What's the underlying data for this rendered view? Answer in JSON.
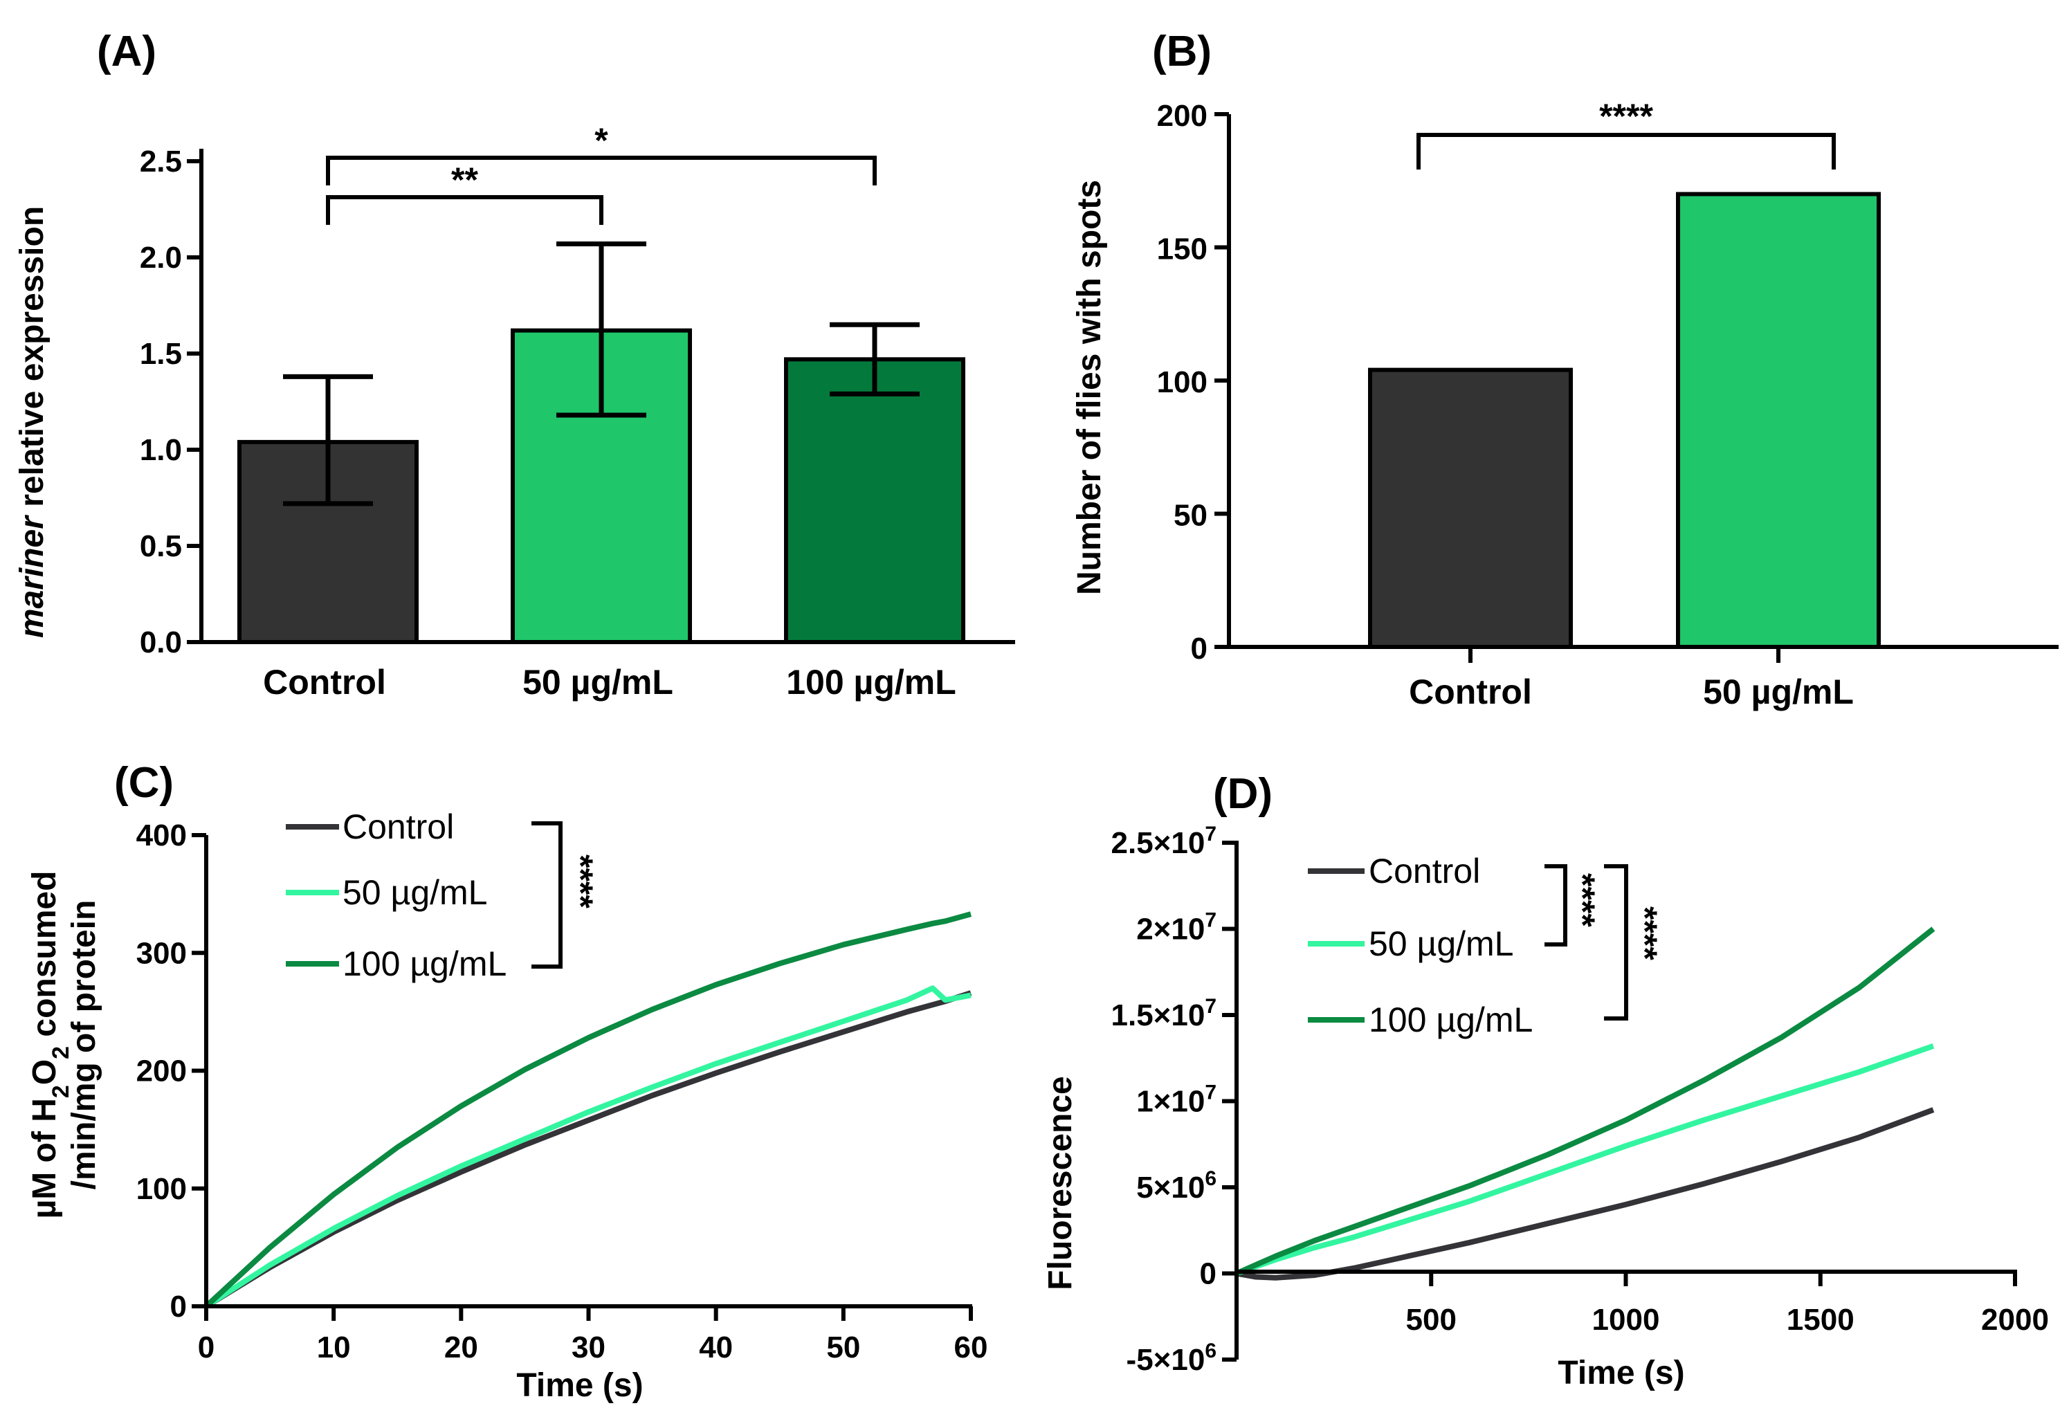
{
  "figure": {
    "colors": {
      "control": "#333333",
      "dose50": "#1fc66a",
      "dose100": "#037a3c",
      "line50": "#33f5a0",
      "line100": "#0b8a42",
      "lineControl": "#333338"
    }
  },
  "chart_data": [
    {
      "panel": "(A)",
      "type": "bar",
      "title": "",
      "categories": [
        "Control",
        "50 µg/mL",
        "100 µg/mL"
      ],
      "values": [
        1.04,
        1.62,
        1.47
      ],
      "error_low": [
        0.72,
        1.18,
        1.29
      ],
      "error_high": [
        1.38,
        2.07,
        1.65
      ],
      "ylabel_italic": "mariner",
      "ylabel_rest": " relative expression",
      "xlabel": "",
      "ylim": [
        0,
        2.5
      ],
      "yticks": [
        0,
        0.5,
        1.0,
        1.5,
        2.0,
        2.5
      ],
      "ytick_labels": [
        "0.0",
        "0.5",
        "1.0",
        "1.5",
        "2.0",
        "2.5"
      ],
      "significance": [
        {
          "from": 0,
          "to": 1,
          "label": "**"
        },
        {
          "from": 0,
          "to": 2,
          "label": "*"
        }
      ]
    },
    {
      "panel": "(B)",
      "type": "bar",
      "title": "",
      "categories": [
        "Control",
        "50 µg/mL"
      ],
      "values": [
        104,
        170
      ],
      "ylabel": "Number of flies with spots",
      "xlabel": "",
      "ylim": [
        0,
        200
      ],
      "yticks": [
        0,
        50,
        100,
        150,
        200
      ],
      "ytick_labels": [
        "0",
        "50",
        "100",
        "150",
        "200"
      ],
      "significance": [
        {
          "from": 0,
          "to": 1,
          "label": "****"
        }
      ]
    },
    {
      "panel": "(C)",
      "type": "line",
      "title": "",
      "xlabel": "Time (s)",
      "ylabel_line1_pre": "µM of H",
      "ylabel_line1_sub1": "2",
      "ylabel_line1_mid": "O",
      "ylabel_line1_sub2": "2",
      "ylabel_line1_post": " consumed",
      "ylabel_line2": "/min/mg of protein",
      "xlim": [
        0,
        60
      ],
      "ylim": [
        0,
        400
      ],
      "xticks": [
        0,
        10,
        20,
        30,
        40,
        50,
        60
      ],
      "xtick_labels": [
        "0",
        "10",
        "20",
        "30",
        "40",
        "50",
        "60"
      ],
      "yticks": [
        0,
        100,
        200,
        300,
        400
      ],
      "ytick_labels": [
        "0",
        "100",
        "200",
        "300",
        "400"
      ],
      "x": [
        0,
        5,
        10,
        15,
        20,
        25,
        30,
        35,
        40,
        45,
        50,
        55,
        57,
        58,
        60
      ],
      "series": [
        {
          "name": "Control",
          "color_key": "lineControl",
          "values": [
            0,
            33,
            63,
            90,
            114,
            137,
            158,
            179,
            198,
            216,
            233,
            250,
            256,
            259,
            266
          ]
        },
        {
          "name": "50 µg/mL",
          "color_key": "line50",
          "values": [
            0,
            35,
            66,
            94,
            119,
            142,
            165,
            186,
            206,
            224,
            242,
            260,
            270,
            260,
            264
          ]
        },
        {
          "name": "100 µg/mL",
          "color_key": "line100",
          "values": [
            0,
            50,
            95,
            135,
            170,
            201,
            228,
            252,
            273,
            291,
            307,
            320,
            325,
            327,
            333
          ]
        }
      ],
      "legend": [
        "Control",
        "50 µg/mL",
        "100 µg/mL"
      ],
      "significance_label": "****"
    },
    {
      "panel": "(D)",
      "type": "line",
      "title": "",
      "xlabel": "Time (s)",
      "ylabel": "Fluorescence",
      "xlim": [
        0,
        2000
      ],
      "ylim": [
        -5000000,
        25000000
      ],
      "xticks": [
        500,
        1000,
        1500,
        2000
      ],
      "xtick_labels": [
        "500",
        "1000",
        "1500",
        "2000"
      ],
      "yticks": [
        -5000000,
        0,
        5000000,
        10000000,
        15000000,
        20000000,
        25000000
      ],
      "ytick_labels": [
        {
          "base": "-5×10",
          "exp": "6"
        },
        {
          "base": "0",
          "exp": ""
        },
        {
          "base": "5×10",
          "exp": "6"
        },
        {
          "base": "1×10",
          "exp": "7"
        },
        {
          "base": "1.5×10",
          "exp": "7"
        },
        {
          "base": "2×10",
          "exp": "7"
        },
        {
          "base": "2.5×10",
          "exp": "7"
        }
      ],
      "x": [
        0,
        50,
        100,
        200,
        300,
        400,
        500,
        600,
        800,
        1000,
        1200,
        1400,
        1600,
        1790
      ],
      "series": [
        {
          "name": "Control",
          "color_key": "lineControl",
          "values": [
            0,
            -200000,
            -250000,
            -100000,
            300000,
            800000,
            1300000,
            1800000,
            2900000,
            4000000,
            5200000,
            6500000,
            7900000,
            9500000
          ]
        },
        {
          "name": "50 µg/mL",
          "color_key": "line50",
          "values": [
            0,
            400000,
            800000,
            1500000,
            2100000,
            2800000,
            3500000,
            4200000,
            5800000,
            7400000,
            8900000,
            10300000,
            11700000,
            13200000
          ]
        },
        {
          "name": "100 µg/mL",
          "color_key": "line100",
          "values": [
            0,
            500000,
            1000000,
            1900000,
            2700000,
            3500000,
            4300000,
            5100000,
            6900000,
            8900000,
            11200000,
            13700000,
            16600000,
            20000000
          ]
        }
      ],
      "legend": [
        "Control",
        "50 µg/mL",
        "100 µg/mL"
      ],
      "significance": [
        "****",
        "****"
      ]
    }
  ]
}
